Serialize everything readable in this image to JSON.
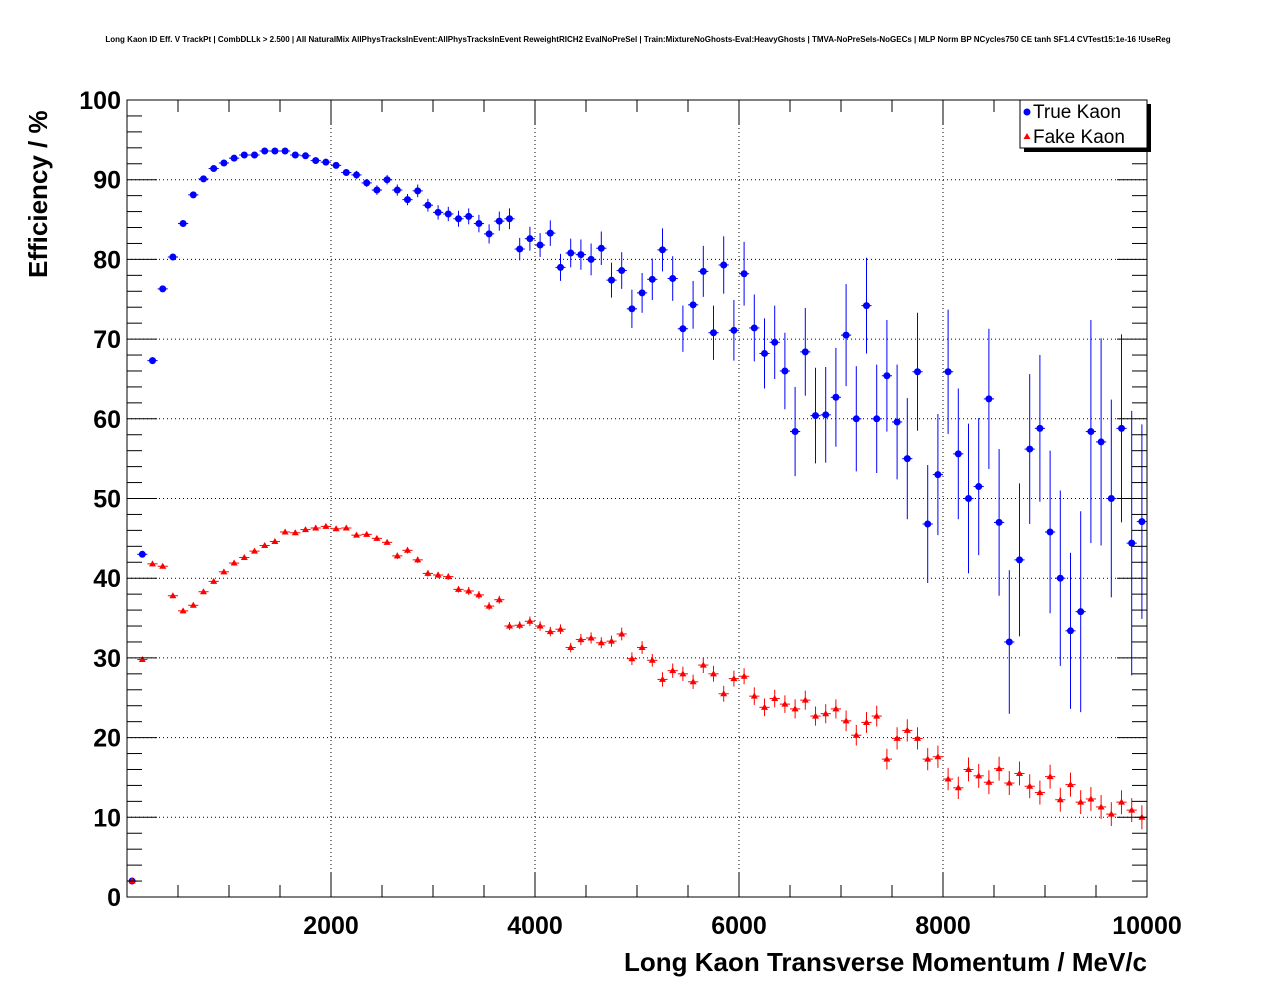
{
  "chart_data": {
    "type": "scatter",
    "title": "Long Kaon ID Eff. V TrackPt | CombDLLk > 2.500 | All NaturalMix AllPhysTracksInEvent:AllPhysTracksInEvent ReweightRICH2 EvalNoPreSel | Train:MixtureNoGhosts-Eval:HeavyGhosts | TMVA-NoPreSels-NoGECs | MLP Norm BP NCycles750 CE tanh SF1.4 CVTest15:1e-16 !UseReg",
    "xlabel": "Long Kaon Transverse Momentum / MeV/c",
    "ylabel": "Efficiency / %",
    "xlim": [
      0,
      10000
    ],
    "ylim": [
      0,
      100
    ],
    "x_ticks": [
      "2000",
      "4000",
      "6000",
      "8000",
      "10000"
    ],
    "y_ticks": [
      "0",
      "10",
      "20",
      "30",
      "40",
      "50",
      "60",
      "70",
      "80",
      "90",
      "100"
    ],
    "grid": true,
    "legend_position": "top-right",
    "bin_width": 100,
    "first_bin_center": 50,
    "series": [
      {
        "name": "True Kaon",
        "color": "#0000ff",
        "marker": "circle",
        "values": [
          2.0,
          43.0,
          67.3,
          76.3,
          80.3,
          84.5,
          88.1,
          90.1,
          91.4,
          92.1,
          92.7,
          93.1,
          93.1,
          93.6,
          93.6,
          93.6,
          93.1,
          93.0,
          92.4,
          92.2,
          91.8,
          90.9,
          90.6,
          89.6,
          88.7,
          90.0,
          88.7,
          87.5,
          88.6,
          86.8,
          85.9,
          85.7,
          85.1,
          85.4,
          84.5,
          83.2,
          84.8,
          85.1,
          81.3,
          82.6,
          81.8,
          83.3,
          79.0,
          80.8,
          80.6,
          80.0,
          81.4,
          77.4,
          78.6,
          73.8,
          75.8,
          77.5,
          81.2,
          77.6,
          71.3,
          74.3,
          78.5,
          70.8,
          79.3,
          71.1,
          78.2,
          71.4,
          68.2,
          69.6,
          66.0,
          58.4,
          68.4,
          60.4,
          60.5,
          62.7,
          70.5,
          60.0,
          74.2,
          60.0,
          65.4,
          59.6,
          55.0,
          65.9,
          46.8,
          53.0,
          65.9,
          55.6,
          50.0,
          51.5,
          62.5,
          47.0,
          32.0,
          42.3,
          56.2,
          58.8,
          45.8,
          40.0,
          33.4,
          35.8,
          58.4,
          57.1,
          50.0,
          58.8,
          44.4,
          47.1
        ],
        "errors": [
          0.3,
          0.4,
          0.4,
          0.3,
          0.3,
          0.3,
          0.3,
          0.3,
          0.3,
          0.3,
          0.3,
          0.3,
          0.3,
          0.3,
          0.3,
          0.3,
          0.3,
          0.3,
          0.3,
          0.4,
          0.4,
          0.4,
          0.5,
          0.5,
          0.6,
          0.6,
          0.7,
          0.7,
          0.8,
          0.8,
          0.9,
          0.9,
          1.0,
          1.0,
          1.1,
          1.2,
          1.2,
          1.3,
          1.4,
          1.5,
          1.5,
          1.6,
          1.7,
          1.8,
          1.9,
          2.0,
          2.1,
          2.2,
          2.3,
          2.4,
          2.5,
          2.6,
          2.7,
          2.8,
          2.9,
          3.0,
          3.2,
          3.4,
          3.6,
          3.8,
          4.0,
          4.2,
          4.4,
          4.6,
          4.8,
          5.6,
          5.5,
          6.0,
          6.0,
          6.2,
          6.4,
          6.6,
          6.0,
          6.8,
          7.0,
          7.2,
          7.6,
          7.4,
          7.4,
          7.6,
          7.8,
          8.2,
          9.4,
          8.6,
          8.8,
          9.2,
          9.0,
          9.6,
          9.4,
          9.2,
          10.2,
          11.0,
          9.8,
          12.6,
          14.0,
          13.0,
          12.4,
          11.8,
          16.6,
          12.2
        ]
      },
      {
        "name": "Fake Kaon",
        "color": "#ff0000",
        "marker": "triangle",
        "values": [
          2.0,
          29.8,
          41.8,
          41.5,
          37.8,
          35.9,
          36.6,
          38.3,
          39.6,
          40.8,
          41.9,
          42.6,
          43.4,
          44.1,
          44.6,
          45.8,
          45.7,
          46.1,
          46.3,
          46.5,
          46.2,
          46.3,
          45.4,
          45.5,
          45.0,
          44.5,
          42.8,
          43.5,
          42.3,
          40.6,
          40.4,
          40.2,
          38.6,
          38.4,
          37.9,
          36.5,
          37.3,
          34.0,
          34.1,
          34.6,
          34.0,
          33.3,
          33.6,
          31.3,
          32.3,
          32.5,
          31.9,
          32.1,
          33.0,
          29.9,
          31.3,
          29.7,
          27.3,
          28.4,
          28.0,
          27.0,
          29.1,
          28.0,
          25.5,
          27.4,
          27.7,
          25.2,
          23.8,
          24.9,
          24.2,
          23.6,
          24.7,
          22.7,
          23.0,
          23.6,
          22.1,
          20.3,
          21.9,
          22.7,
          17.3,
          19.9,
          20.9,
          19.9,
          17.3,
          17.6,
          14.8,
          13.7,
          16.0,
          15.2,
          14.4,
          16.1,
          14.3,
          15.5,
          13.9,
          13.1,
          15.1,
          12.2,
          14.1,
          11.9,
          12.3,
          11.3,
          10.4,
          11.9,
          10.9,
          10.0
        ],
        "errors": [
          0.2,
          0.3,
          0.3,
          0.3,
          0.3,
          0.3,
          0.3,
          0.3,
          0.3,
          0.3,
          0.3,
          0.3,
          0.3,
          0.3,
          0.3,
          0.3,
          0.3,
          0.3,
          0.3,
          0.3,
          0.3,
          0.3,
          0.3,
          0.3,
          0.3,
          0.3,
          0.4,
          0.4,
          0.4,
          0.4,
          0.4,
          0.4,
          0.4,
          0.5,
          0.5,
          0.5,
          0.5,
          0.5,
          0.5,
          0.6,
          0.6,
          0.6,
          0.6,
          0.6,
          0.7,
          0.7,
          0.7,
          0.7,
          0.8,
          0.8,
          0.8,
          0.8,
          0.9,
          0.9,
          0.9,
          0.9,
          1.0,
          1.0,
          1.0,
          1.0,
          1.0,
          1.1,
          1.1,
          1.1,
          1.1,
          1.2,
          1.2,
          1.2,
          1.2,
          1.2,
          1.3,
          1.3,
          1.3,
          1.3,
          1.3,
          1.4,
          1.4,
          1.4,
          1.4,
          1.4,
          1.4,
          1.4,
          1.5,
          1.5,
          1.5,
          1.5,
          1.5,
          1.5,
          1.5,
          1.5,
          1.5,
          1.5,
          1.5,
          1.5,
          1.5,
          1.5,
          1.5,
          1.5,
          1.5,
          1.5
        ]
      }
    ]
  }
}
